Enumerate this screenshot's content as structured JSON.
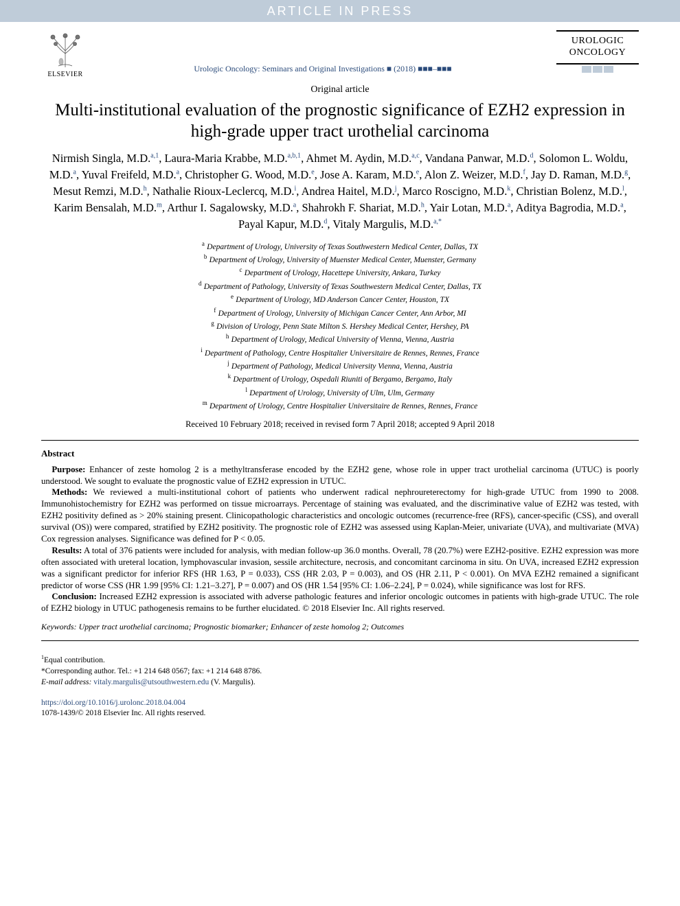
{
  "watermark": {
    "text": "ARTICLE IN PRESS",
    "bg_color": "#bfccd9",
    "text_color": "#ffffff",
    "font_size_pt": 18
  },
  "header": {
    "publisher_name": "ELSEVIER",
    "journal_reference": "Urologic Oncology: Seminars and Original Investigations ■ (2018) ■■■–■■■",
    "journal_name_line1": "UROLOGIC",
    "journal_name_line2": "ONCOLOGY",
    "journal_ref_color": "#2a4a7a",
    "wm_box_color": "#bfccd9"
  },
  "article": {
    "type": "Original article",
    "title": "Multi-institutional evaluation of the prognostic significance of EZH2 expression in high-grade upper tract urothelial carcinoma",
    "title_fontsize_pt": 19
  },
  "authors": [
    {
      "name": "Nirmish Singla, M.D.",
      "aff": "a,1"
    },
    {
      "name": "Laura-Maria Krabbe, M.D.",
      "aff": "a,b,1"
    },
    {
      "name": "Ahmet M. Aydin, M.D.",
      "aff": "a,c"
    },
    {
      "name": "Vandana Panwar, M.D.",
      "aff": "d"
    },
    {
      "name": "Solomon L. Woldu, M.D.",
      "aff": "a"
    },
    {
      "name": "Yuval Freifeld, M.D.",
      "aff": "a"
    },
    {
      "name": "Christopher G. Wood, M.D.",
      "aff": "e"
    },
    {
      "name": "Jose A. Karam, M.D.",
      "aff": "e"
    },
    {
      "name": "Alon Z. Weizer, M.D.",
      "aff": "f"
    },
    {
      "name": "Jay D. Raman, M.D.",
      "aff": "g"
    },
    {
      "name": "Mesut Remzi, M.D.",
      "aff": "h"
    },
    {
      "name": "Nathalie Rioux-Leclercq, M.D.",
      "aff": "i"
    },
    {
      "name": "Andrea Haitel, M.D.",
      "aff": "j"
    },
    {
      "name": "Marco Roscigno, M.D.",
      "aff": "k"
    },
    {
      "name": "Christian Bolenz, M.D.",
      "aff": "l"
    },
    {
      "name": "Karim Bensalah, M.D.",
      "aff": "m"
    },
    {
      "name": "Arthur I. Sagalowsky, M.D.",
      "aff": "a"
    },
    {
      "name": "Shahrokh F. Shariat, M.D.",
      "aff": "h"
    },
    {
      "name": "Yair Lotan, M.D.",
      "aff": "a"
    },
    {
      "name": "Aditya Bagrodia, M.D.",
      "aff": "a"
    },
    {
      "name": "Payal Kapur, M.D.",
      "aff": "d"
    },
    {
      "name": "Vitaly Margulis, M.D.",
      "aff": "a,*"
    }
  ],
  "affiliations": [
    {
      "key": "a",
      "text": "Department of Urology, University of Texas Southwestern Medical Center, Dallas, TX"
    },
    {
      "key": "b",
      "text": "Department of Urology, University of Muenster Medical Center, Muenster, Germany"
    },
    {
      "key": "c",
      "text": "Department of Urology, Hacettepe University, Ankara, Turkey"
    },
    {
      "key": "d",
      "text": "Department of Pathology, University of Texas Southwestern Medical Center, Dallas, TX"
    },
    {
      "key": "e",
      "text": "Department of Urology, MD Anderson Cancer Center, Houston, TX"
    },
    {
      "key": "f",
      "text": "Department of Urology, University of Michigan Cancer Center, Ann Arbor, MI"
    },
    {
      "key": "g",
      "text": "Division of Urology, Penn State Milton S. Hershey Medical Center, Hershey, PA"
    },
    {
      "key": "h",
      "text": "Department of Urology, Medical University of Vienna, Vienna, Austria"
    },
    {
      "key": "i",
      "text": "Department of Pathology, Centre Hospitalier Universitaire de Rennes, Rennes, France"
    },
    {
      "key": "j",
      "text": "Department of Pathology, Medical University Vienna, Vienna, Austria"
    },
    {
      "key": "k",
      "text": "Department of Urology, Ospedali Riuniti of Bergamo, Bergamo, Italy"
    },
    {
      "key": "l",
      "text": "Department of Urology, University of Ulm, Ulm, Germany"
    },
    {
      "key": "m",
      "text": "Department of Urology, Centre Hospitalier Universitaire de Rennes, Rennes, France"
    }
  ],
  "dates": "Received 10 February 2018; received in revised form 7 April 2018; accepted 9 April 2018",
  "abstract": {
    "heading": "Abstract",
    "purpose": "Enhancer of zeste homolog 2 is a methyltransferase encoded by the EZH2 gene, whose role in upper tract urothelial carcinoma (UTUC) is poorly understood. We sought to evaluate the prognostic value of EZH2 expression in UTUC.",
    "methods": "We reviewed a multi-institutional cohort of patients who underwent radical nephroureterectomy for high-grade UTUC from 1990 to 2008. Immunohistochemistry for EZH2 was performed on tissue microarrays. Percentage of staining was evaluated, and the discriminative value of EZH2 was tested, with EZH2 positivity defined as > 20% staining present. Clinicopathologic characteristics and oncologic outcomes (recurrence-free (RFS), cancer-specific (CSS), and overall survival (OS)) were compared, stratified by EZH2 positivity. The prognostic role of EZH2 was assessed using Kaplan-Meier, univariate (UVA), and multivariate (MVA) Cox regression analyses. Significance was defined for P < 0.05.",
    "results": "A total of 376 patients were included for analysis, with median follow-up 36.0 months. Overall, 78 (20.7%) were EZH2-positive. EZH2 expression was more often associated with ureteral location, lymphovascular invasion, sessile architecture, necrosis, and concomitant carcinoma in situ. On UVA, increased EZH2 expression was a significant predictor for inferior RFS (HR 1.63, P = 0.033), CSS (HR 2.03, P = 0.003), and OS (HR 2.11, P < 0.001). On MVA EZH2 remained a significant predictor of worse CSS (HR 1.99 [95% CI: 1.21–3.27], P = 0.007) and OS (HR 1.54 [95% CI: 1.06–2.24], P = 0.024), while significance was lost for RFS.",
    "conclusion": "Increased EZH2 expression is associated with adverse pathologic features and inferior oncologic outcomes in patients with high-grade UTUC. The role of EZH2 biology in UTUC pathogenesis remains to be further elucidated. © 2018 Elsevier Inc. All rights reserved.",
    "labels": {
      "purpose": "Purpose:",
      "methods": "Methods:",
      "results": "Results:",
      "conclusion": "Conclusion:"
    }
  },
  "keywords": {
    "label": "Keywords:",
    "text": "Upper tract urothelial carcinoma; Prognostic biomarker; Enhancer of zeste homolog 2; Outcomes"
  },
  "footnotes": {
    "equal": "Equal contribution.",
    "corresponding": "Corresponding author. Tel.: +1 214 648 0567; fax: +1 214 648 8786.",
    "email_label": "E-mail address:",
    "email": "vitaly.margulis@utsouthwestern.edu",
    "email_paren": "(V. Margulis)."
  },
  "doi": {
    "url": "https://doi.org/10.1016/j.urolonc.2018.04.004",
    "issn_copyright": "1078-1439/© 2018 Elsevier Inc. All rights reserved."
  },
  "colors": {
    "link_color": "#2a4a7a",
    "text_color": "#000000",
    "background": "#ffffff"
  }
}
